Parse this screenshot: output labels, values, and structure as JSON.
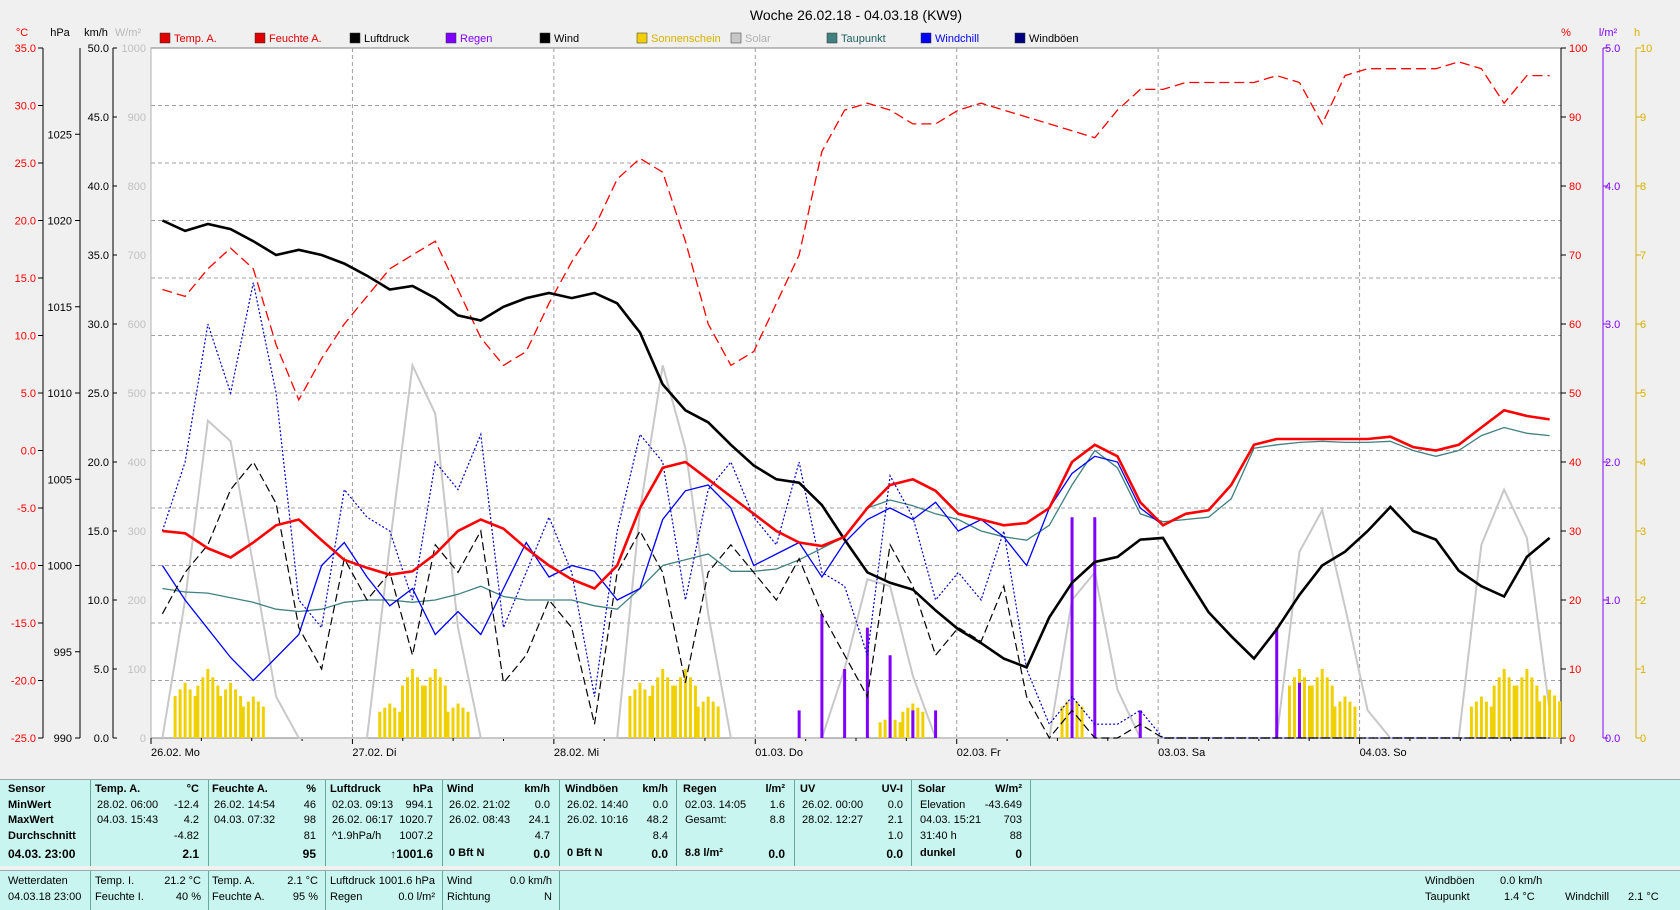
{
  "title": "Woche 26.02.18 - 04.03.18 (KW9)",
  "left_axis_units": [
    "°C",
    "hPa",
    "km/h",
    "W/m²"
  ],
  "right_axis_units": [
    "%",
    "l/m²",
    "h"
  ],
  "legend": [
    {
      "label": "Temp. A.",
      "color": "#e00000"
    },
    {
      "label": "Feuchte A.",
      "color": "#e00000"
    },
    {
      "label": "Luftdruck",
      "color": "#000000"
    },
    {
      "label": "Regen",
      "color": "#8000ff"
    },
    {
      "label": "Wind",
      "color": "#000000"
    },
    {
      "label": "Sonnenschein",
      "color": "#f0d000"
    },
    {
      "label": "Solar",
      "color": "#c8c8c8"
    },
    {
      "label": "Taupunkt",
      "color": "#408080"
    },
    {
      "label": "Windchill",
      "color": "#0000ff"
    },
    {
      "label": "Windböen",
      "color": "#000080"
    }
  ],
  "chart_data": {
    "type": "line",
    "x_labels": [
      "26.02.  Mo",
      "27.02.  Di",
      "28.02.  Mi",
      "01.03.  Do",
      "02.03.  Fr",
      "03.03.  Sa",
      "04.03.  So"
    ],
    "axes": {
      "temp_ticks": [
        "35.0",
        "30.0",
        "25.0",
        "20.0",
        "15.0",
        "10.0",
        "5.0",
        "0.0",
        "-5.0",
        "-10.0",
        "-15.0",
        "-20.0",
        "-25.0"
      ],
      "pressure_ticks": [
        "1025",
        "1020",
        "1015",
        "1010",
        "1005",
        "1000",
        "995",
        "990"
      ],
      "wind_ticks": [
        "50.0",
        "45.0",
        "40.0",
        "35.0",
        "30.0",
        "25.0",
        "20.0",
        "15.0",
        "10.0",
        "5.0",
        "0.0"
      ],
      "solar_ticks": [
        "1000",
        "900",
        "800",
        "700",
        "600",
        "500",
        "400",
        "300",
        "200",
        "100",
        "0"
      ],
      "humidity_ticks": [
        "100",
        "90",
        "80",
        "70",
        "60",
        "50",
        "40",
        "30",
        "20",
        "10",
        "0"
      ],
      "rain_ticks": [
        "5.0",
        "4.0",
        "3.0",
        "2.0",
        "1.0",
        "0.0"
      ],
      "sun_ticks": [
        "10",
        "9",
        "8",
        "7",
        "6",
        "5",
        "4",
        "3",
        "2",
        "1",
        "0"
      ],
      "temp_range": [
        -25,
        35
      ],
      "pressure_range": [
        990,
        1030
      ],
      "wind_range": [
        0,
        50
      ],
      "solar_range": [
        0,
        1000
      ],
      "humidity_range": [
        0,
        100
      ],
      "rain_range": [
        0,
        5
      ],
      "sun_range": [
        0,
        10
      ]
    },
    "series": [
      {
        "name": "Temp. A.",
        "unit": "°C",
        "color": "#ff0000",
        "values": [
          -7.0,
          -7.2,
          -8.5,
          -9.3,
          -8.0,
          -6.5,
          -6.0,
          -7.8,
          -9.5,
          -10.2,
          -10.8,
          -10.5,
          -9.0,
          -7.0,
          -6.0,
          -6.8,
          -8.5,
          -10.0,
          -11.2,
          -12.0,
          -10.0,
          -5.0,
          -1.5,
          -1.0,
          -2.5,
          -4.0,
          -5.5,
          -7.0,
          -8.0,
          -8.3,
          -7.5,
          -5.0,
          -3.0,
          -2.5,
          -3.5,
          -5.5,
          -6.0,
          -6.5,
          -6.3,
          -5.0,
          -1.0,
          0.5,
          -0.5,
          -4.5,
          -6.5,
          -5.5,
          -5.2,
          -3.0,
          0.5,
          1.0,
          1.0,
          1.0,
          1.0,
          1.0,
          1.2,
          0.3,
          0.0,
          0.5,
          2.0,
          3.5,
          3.0,
          2.7
        ]
      },
      {
        "name": "Feuchte A.",
        "unit": "%",
        "color": "#ff0000",
        "values": [
          65,
          64,
          68,
          71,
          68,
          57,
          49,
          55,
          60,
          64,
          68,
          70,
          72,
          65,
          58,
          54,
          56,
          63,
          69,
          74,
          81,
          84,
          82,
          72,
          60,
          54,
          56,
          63,
          70,
          85,
          91,
          92,
          91,
          89,
          89,
          91,
          92,
          91,
          90,
          89,
          88,
          87,
          91,
          94,
          94,
          95,
          95,
          95,
          95,
          96,
          95,
          89,
          96,
          97,
          97,
          97,
          97,
          98,
          97,
          92,
          96,
          96
        ]
      },
      {
        "name": "Luftdruck",
        "unit": "hPa",
        "color": "#000000",
        "values": [
          1020.0,
          1019.4,
          1019.8,
          1019.5,
          1018.8,
          1018.0,
          1018.3,
          1018.0,
          1017.5,
          1016.8,
          1016.0,
          1016.2,
          1015.5,
          1014.5,
          1014.2,
          1015.0,
          1015.5,
          1015.8,
          1015.5,
          1015.8,
          1015.2,
          1013.5,
          1010.5,
          1009.0,
          1008.3,
          1007.0,
          1005.8,
          1005.0,
          1004.8,
          1003.5,
          1001.5,
          999.6,
          999.0,
          998.6,
          997.4,
          996.3,
          995.5,
          994.6,
          994.1,
          997.0,
          999.0,
          1000.2,
          1000.5,
          1001.5,
          1001.6,
          999.4,
          997.3,
          995.9,
          994.6,
          996.3,
          998.3,
          1000.0,
          1000.8,
          1002.0,
          1003.4,
          1002.0,
          1001.5,
          999.7,
          998.8,
          998.2,
          1000.5,
          1001.6
        ]
      },
      {
        "name": "Regen",
        "unit": "l/m²",
        "color": "#8000ff",
        "values": [
          0,
          0,
          0,
          0,
          0,
          0,
          0,
          0,
          0,
          0,
          0,
          0,
          0,
          0,
          0,
          0,
          0,
          0,
          0,
          0,
          0,
          0,
          0,
          0,
          0,
          0,
          0,
          0,
          0.2,
          0.9,
          0.5,
          0.8,
          0.6,
          0.2,
          0.2,
          0,
          0,
          0,
          0,
          0,
          1.6,
          1.6,
          0,
          0.2,
          0,
          0,
          0,
          0,
          0,
          0.8,
          0.4,
          0,
          0,
          0,
          0,
          0,
          0,
          0,
          0,
          0,
          0,
          0
        ]
      },
      {
        "name": "Wind",
        "unit": "km/h",
        "color": "#000000",
        "values": [
          9,
          12,
          14,
          18,
          20,
          17,
          8,
          5,
          13,
          10,
          12,
          6,
          14,
          12,
          15,
          4,
          6,
          10,
          8,
          1,
          12,
          15,
          12,
          4,
          12,
          14,
          12,
          10,
          13,
          9,
          6,
          3,
          14,
          11,
          6,
          8,
          7,
          11,
          3,
          0,
          2,
          0,
          0,
          1,
          0,
          0,
          0,
          0,
          0,
          0,
          0,
          0,
          0,
          0,
          0,
          0,
          0,
          0,
          0,
          0,
          0,
          0
        ]
      },
      {
        "name": "Sonnenschein",
        "unit": "h",
        "color": "#f0d000",
        "values": [
          0,
          0.8,
          1.0,
          0.8,
          0.6,
          0,
          0,
          0,
          0,
          0,
          0.5,
          1.0,
          1.0,
          0.5,
          0,
          0,
          0,
          0,
          0,
          0,
          0,
          0.8,
          1.0,
          1.0,
          0.6,
          0,
          0,
          0,
          0,
          0,
          0,
          0,
          0.3,
          0.5,
          0,
          0,
          0,
          0,
          0,
          0,
          0.6,
          0,
          0,
          0,
          0,
          0,
          0,
          0,
          0,
          0,
          1.0,
          1.0,
          0.6,
          0,
          0,
          0,
          0,
          0,
          0.6,
          1.0,
          1.0,
          0.7
        ]
      },
      {
        "name": "Solar",
        "unit": "W/m²",
        "color": "#c8c8c8",
        "values": [
          0,
          200,
          460,
          430,
          250,
          60,
          0,
          0,
          0,
          0,
          280,
          540,
          470,
          160,
          0,
          0,
          0,
          0,
          0,
          0,
          0,
          330,
          540,
          420,
          180,
          0,
          0,
          0,
          0,
          0,
          100,
          230,
          220,
          90,
          0,
          0,
          0,
          0,
          0,
          0,
          200,
          240,
          70,
          0,
          0,
          0,
          0,
          0,
          0,
          0,
          270,
          330,
          190,
          40,
          0,
          0,
          0,
          0,
          280,
          360,
          290,
          40
        ]
      },
      {
        "name": "Taupunkt",
        "unit": "°C",
        "color": "#408080",
        "values": [
          -12.0,
          -12.3,
          -12.4,
          -12.8,
          -13.2,
          -13.8,
          -14.0,
          -13.8,
          -13.2,
          -13.0,
          -13.0,
          -13.2,
          -13.0,
          -12.5,
          -11.8,
          -12.7,
          -13.0,
          -13.0,
          -13.0,
          -13.5,
          -13.8,
          -12.0,
          -10.0,
          -9.5,
          -9.0,
          -10.5,
          -10.5,
          -10.3,
          -9.5,
          -8.5,
          -7.5,
          -5.0,
          -4.3,
          -4.8,
          -5.5,
          -6.0,
          -7.0,
          -7.5,
          -7.8,
          -6.5,
          -3.0,
          0.0,
          -1.5,
          -5.5,
          -6.2,
          -6.0,
          -5.8,
          -4.2,
          0.2,
          0.5,
          0.7,
          0.8,
          0.7,
          0.7,
          0.8,
          0.0,
          -0.5,
          0.0,
          1.3,
          2.0,
          1.5,
          1.3
        ]
      },
      {
        "name": "Windchill",
        "unit": "°C",
        "color": "#0000ff",
        "values": [
          -10.0,
          -13.0,
          -15.5,
          -18.0,
          -20.0,
          -18.0,
          -16.0,
          -10.0,
          -8.0,
          -11.0,
          -13.5,
          -12.0,
          -16.0,
          -14.0,
          -16.0,
          -12.0,
          -8.0,
          -11.0,
          -10.0,
          -10.5,
          -13.0,
          -12.0,
          -6.0,
          -3.5,
          -3.0,
          -5.0,
          -10.0,
          -9.0,
          -8.0,
          -11.0,
          -8.0,
          -6.0,
          -5.0,
          -6.0,
          -4.5,
          -7.0,
          -6.0,
          -7.5,
          -10.0,
          -5.0,
          -2.0,
          -0.5,
          -1.0,
          -5.0,
          -6.5,
          -5.5,
          -5.2,
          -3.0,
          0.5,
          1.0,
          1.0,
          1.0,
          1.0,
          1.0,
          1.2,
          0.3,
          0.0,
          0.5,
          2.0,
          3.5,
          3.0,
          2.7
        ]
      },
      {
        "name": "Windböen",
        "unit": "km/h",
        "color": "#000080",
        "values": [
          15,
          20,
          30,
          25,
          33,
          25,
          10,
          8,
          18,
          16,
          15,
          10,
          20,
          18,
          22,
          8,
          12,
          16,
          12,
          3,
          15,
          22,
          20,
          10,
          18,
          20,
          16,
          14,
          20,
          12,
          11,
          6,
          19,
          16,
          10,
          12,
          10,
          15,
          5,
          1,
          3,
          1,
          1,
          2,
          0,
          0,
          0,
          0,
          0,
          0,
          0,
          0,
          0,
          0,
          0,
          0,
          0,
          0,
          0,
          0,
          0,
          0
        ]
      }
    ]
  },
  "stats": {
    "headers": [
      {
        "name": "Sensor",
        "unit": ""
      },
      {
        "name": "Temp. A.",
        "unit": "°C"
      },
      {
        "name": "Feuchte A.",
        "unit": "%"
      },
      {
        "name": "Luftdruck",
        "unit": "hPa"
      },
      {
        "name": "Wind",
        "unit": "km/h"
      },
      {
        "name": "Windböen",
        "unit": "km/h"
      },
      {
        "name": "Regen",
        "unit": "l/m²"
      },
      {
        "name": "UV",
        "unit": "UV-I"
      },
      {
        "name": "Solar",
        "unit": "W/m²"
      }
    ],
    "row_labels": [
      "MinWert",
      "MaxWert",
      "Durchschnitt",
      "04.03.  23:00"
    ],
    "temp": [
      [
        "28.02.  06:00",
        "-12.4"
      ],
      [
        "04.03.  15:43",
        "4.2"
      ],
      [
        "",
        "-4.82"
      ],
      [
        "",
        "2.1"
      ]
    ],
    "feuchte": [
      [
        "26.02.  14:54",
        "46"
      ],
      [
        "04.03.  07:32",
        "98"
      ],
      [
        "",
        "81"
      ],
      [
        "",
        "95"
      ]
    ],
    "luftdruck": [
      [
        "02.03.  09:13",
        "994.1"
      ],
      [
        "26.02.  06:17",
        "1020.7"
      ],
      [
        "^1.9hPa/h",
        "1007.2"
      ],
      [
        "",
        "↑1001.6"
      ]
    ],
    "wind": [
      [
        "26.02.  21:02",
        "0.0"
      ],
      [
        "26.02.  08:43",
        "24.1"
      ],
      [
        "",
        "4.7"
      ],
      [
        "0 Bft N",
        "0.0"
      ]
    ],
    "boeen": [
      [
        "26.02.  14:40",
        "0.0"
      ],
      [
        "26.02.  10:16",
        "48.2"
      ],
      [
        "",
        "8.4"
      ],
      [
        "0 Bft N",
        "0.0"
      ]
    ],
    "regen": [
      [
        "02.03.  14:05",
        "1.6"
      ],
      [
        "Gesamt:",
        "8.8"
      ],
      [
        "",
        ""
      ],
      [
        "8.8 l/m²",
        "0.0"
      ]
    ],
    "uv": [
      [
        "26.02.  00:00",
        "0.0"
      ],
      [
        "28.02.  12:27",
        "2.1"
      ],
      [
        "",
        "1.0"
      ],
      [
        "",
        "0.0"
      ]
    ],
    "solar": [
      [
        "Elevation",
        "-43.649"
      ],
      [
        "04.03.  15:21",
        "703"
      ],
      [
        "31:40 h",
        "88"
      ],
      [
        "dunkel",
        "0"
      ]
    ]
  },
  "current": {
    "wetterdaten_label": "Wetterdaten",
    "wetterdaten_time": "04.03.18 23:00",
    "temp_i_label": "Temp. I.",
    "temp_i_value": "21.2 °C",
    "feuchte_i_label": "Feuchte I.",
    "feuchte_i_value": "40 %",
    "temp_a_label": "Temp. A.",
    "temp_a_value": "2.1 °C",
    "feuchte_a_label": "Feuchte A.",
    "feuchte_a_value": "95 %",
    "luftdruck_label": "Luftdruck",
    "luftdruck_value": "1001.6 hPa",
    "regen_label": "Regen",
    "regen_value": "0.0 l/m²",
    "wind_label": "Wind",
    "wind_value": "0.0 km/h",
    "richtung_label": "Richtung",
    "richtung_value": "N",
    "windboeen_label": "Windböen",
    "windboeen_value": "0.0 km/h",
    "taupunkt_label": "Taupunkt",
    "taupunkt_value": "1.4 °C",
    "windchill_label": "Windchill",
    "windchill_value": "2.1 °C"
  }
}
